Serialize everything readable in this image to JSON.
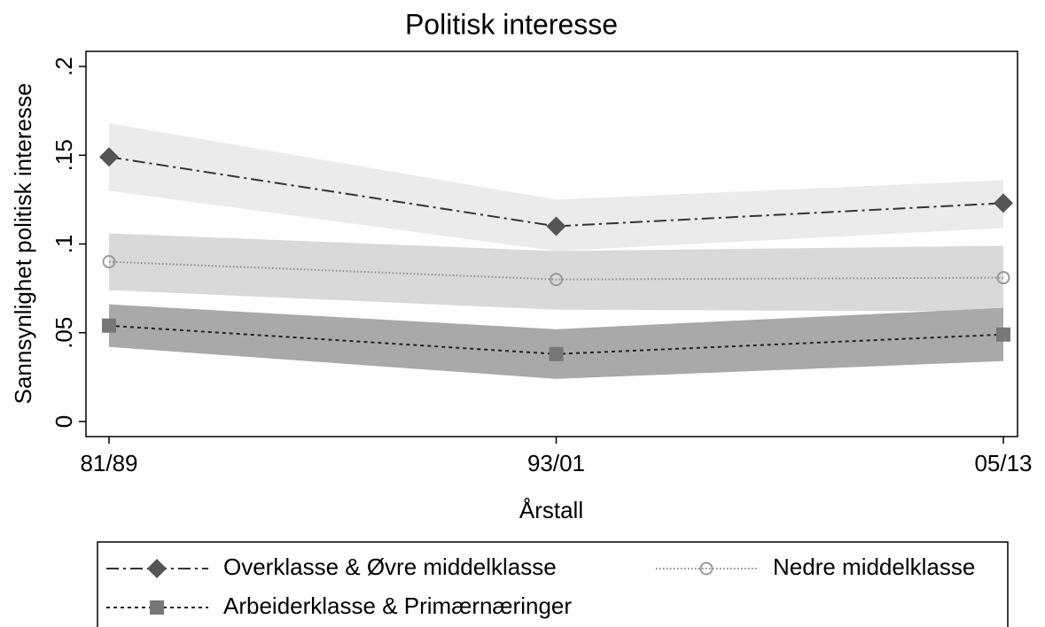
{
  "chart_data": {
    "type": "line",
    "title": "Politisk interesse",
    "x_label": "Årstall",
    "y_label": "Sannsynlighet politisk interesse",
    "categories": [
      "81/89",
      "93/01",
      "05/13"
    ],
    "series": [
      {
        "name": "Overklasse & Øvre middelklasse",
        "color": "#555555",
        "line_color": "#333333",
        "band_color": "#ebebeb",
        "marker": "diamond",
        "dash": "14,5,3,5",
        "values": [
          0.149,
          0.11,
          0.123
        ],
        "lower": [
          0.13,
          0.096,
          0.109
        ],
        "upper": [
          0.168,
          0.125,
          0.136
        ]
      },
      {
        "name": "Nedre middelklasse",
        "color": "#9a9a9a",
        "line_color": "#8a8a8a",
        "band_color": "#d9d9d9",
        "marker": "circle",
        "dash": "1.5,2.5",
        "values": [
          0.09,
          0.08,
          0.081
        ],
        "lower": [
          0.074,
          0.063,
          0.062
        ],
        "upper": [
          0.106,
          0.096,
          0.099
        ]
      },
      {
        "name": "Arbeiderklasse & Primærnæringer",
        "color": "#777777",
        "line_color": "#222222",
        "band_color": "#a9a9a9",
        "marker": "square",
        "dash": "4,4",
        "values": [
          0.054,
          0.038,
          0.049
        ],
        "lower": [
          0.042,
          0.024,
          0.034
        ],
        "upper": [
          0.066,
          0.052,
          0.064
        ]
      }
    ],
    "ylim": [
      -0.0085,
      0.2085
    ],
    "yticks": [
      0,
      {
        "value": 0.05,
        "label": ".05"
      },
      {
        "value": 0.1,
        "label": ".1"
      },
      {
        "value": 0.15,
        "label": ".15"
      },
      {
        "value": 0.2,
        "label": ".2"
      }
    ],
    "grid": false
  }
}
